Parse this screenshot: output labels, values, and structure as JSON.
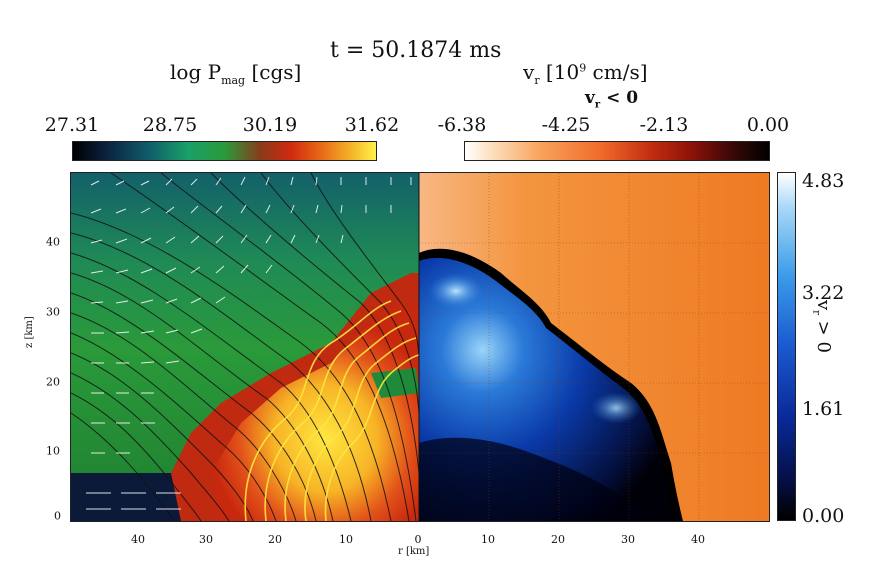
{
  "header": {
    "time_label": "t = 50.1874 ms"
  },
  "left_colorbar": {
    "title": "log P",
    "title_sub": "mag",
    "title_unit": " [cgs]",
    "ticks": [
      "27.31",
      "28.75",
      "30.19",
      "31.62"
    ]
  },
  "right_colorbar": {
    "title_pre": "v",
    "title_sub": "r",
    "title_unit": " [10",
    "title_exp": "9",
    "title_end": " cm/s]",
    "condition_pre": "v",
    "condition_sub": "r",
    "condition_post": " < 0",
    "ticks": [
      "-6.38",
      "-4.25",
      "-2.13",
      "0.00"
    ]
  },
  "vertical_colorbar": {
    "label": "v",
    "label_sub": "r",
    "label_post": " > 0",
    "ticks": [
      "4.83",
      "3.22",
      "1.61",
      "0.00"
    ]
  },
  "plot": {
    "y_axis_label": "z [km]",
    "x_axis_label": "r [km]",
    "y_ticks": [
      "0",
      "10",
      "20",
      "30",
      "40"
    ],
    "x_ticks": [
      "40",
      "30",
      "20",
      "10",
      "0",
      "10",
      "20",
      "30",
      "40"
    ]
  },
  "colors": {
    "pmag_low": "#0b1e3a",
    "pmag_mid": "#2a9a3a",
    "pmag_high": "#fff14a",
    "vr_neg": "#f07a2a",
    "vr_pos": "#1a5ad0"
  }
}
